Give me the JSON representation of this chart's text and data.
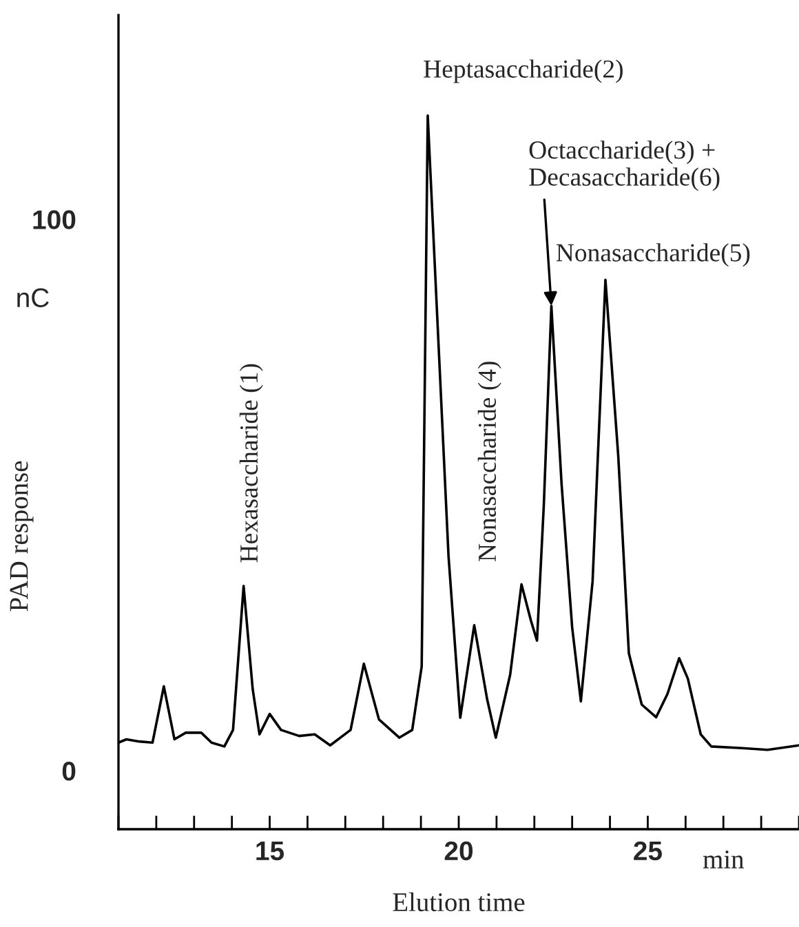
{
  "chart_data": {
    "type": "line",
    "xlabel": "Elution time",
    "ylabel": "PAD response",
    "xlim": [
      11,
      29
    ],
    "ylim": [
      -10.6,
      137
    ],
    "xticks": [
      {
        "value": 11,
        "label": null
      },
      {
        "value": 12,
        "label": null
      },
      {
        "value": 13,
        "label": null
      },
      {
        "value": 14,
        "label": null
      },
      15,
      {
        "value": 16,
        "label": null
      },
      {
        "value": 17,
        "label": null
      },
      {
        "value": 18,
        "label": null
      },
      {
        "value": 19,
        "label": null
      },
      20,
      {
        "value": 21,
        "label": null
      },
      {
        "value": 22,
        "label": null
      },
      {
        "value": 23,
        "label": null
      },
      {
        "value": 24,
        "label": null
      },
      25,
      {
        "value": 26,
        "label": null
      },
      {
        "value": 27,
        "label": null
      },
      {
        "value": 28,
        "label": null
      },
      {
        "value": 29,
        "label": null
      }
    ],
    "yticks": [
      0,
      100
    ],
    "grid": false,
    "marker": "none",
    "line_style": "solid",
    "series": [
      {
        "color": "#000000",
        "x": [
          11.0,
          11.21,
          11.55,
          11.9,
          12.2,
          12.48,
          12.78,
          13.19,
          13.46,
          13.8,
          14.03,
          14.31,
          14.55,
          14.73,
          15.0,
          15.3,
          15.78,
          16.19,
          16.6,
          17.14,
          17.49,
          17.89,
          18.43,
          18.77,
          19.02,
          19.18,
          19.73,
          20.04,
          20.41,
          20.75,
          20.98,
          21.36,
          21.66,
          21.91,
          22.07,
          22.25,
          22.45,
          22.72,
          23.0,
          23.23,
          23.54,
          23.68,
          23.88,
          24.22,
          24.5,
          24.84,
          25.22,
          25.52,
          25.83,
          26.06,
          26.4,
          26.68,
          27.49,
          28.17,
          29.0
        ],
        "values": [
          5.1,
          5.7,
          5.3,
          5.1,
          15.3,
          5.7,
          6.9,
          6.9,
          5.1,
          4.4,
          7.4,
          33.5,
          14.8,
          6.6,
          10.3,
          7.4,
          6.3,
          6.6,
          4.6,
          7.4,
          19.4,
          9.3,
          6.0,
          7.4,
          18.9,
          118.8,
          38.9,
          9.6,
          26.4,
          13.0,
          6.0,
          17.4,
          33.8,
          27.2,
          23.6,
          48.1,
          84.3,
          52,
          26,
          12.6,
          34.3,
          57,
          89.0,
          57,
          21.3,
          12.0,
          9.7,
          13.9,
          20.4,
          16.7,
          6.6,
          4.4,
          4.1,
          3.8,
          4.6
        ]
      }
    ],
    "annotations": [
      {
        "text": "Hexasaccharide (1)",
        "x": 14.31,
        "y": 33.5
      },
      {
        "text": "Heptasaccharide(2)",
        "x": 19.18,
        "y": 118.8
      },
      {
        "text": "Nonasaccharide (4)",
        "x": 20.41,
        "y": 26.4
      },
      {
        "text": "Octaccharide(3) +\nDecasaccharide(6)",
        "x": 22.45,
        "y": 84.3
      },
      {
        "text": "Nonasaccharide(5)",
        "x": 23.88,
        "y": 89.0
      },
      "nC",
      "min"
    ]
  }
}
